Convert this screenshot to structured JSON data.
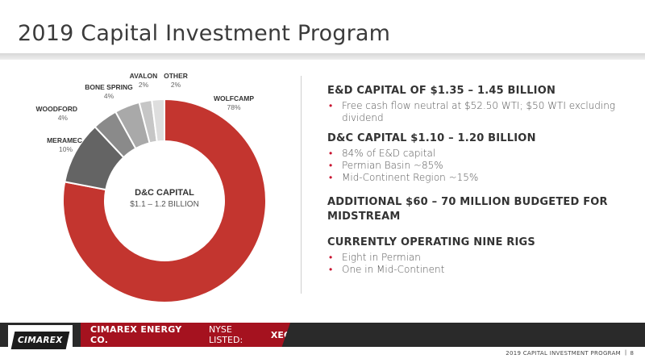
{
  "title": "2019 Capital Investment Program",
  "chart_data": {
    "type": "pie",
    "donut": true,
    "center_label": "D&C CAPITAL",
    "center_value": "$1.1 – 1.2 BILLION",
    "slices": [
      {
        "name": "WOLFCAMP",
        "value": 78,
        "label": "78%",
        "color": "#c3352f"
      },
      {
        "name": "MERAMEC",
        "value": 10,
        "label": "10%",
        "color": "#646464"
      },
      {
        "name": "WOODFORD",
        "value": 4,
        "label": "4%",
        "color": "#8a8a8a"
      },
      {
        "name": "BONE SPRING",
        "value": 4,
        "label": "4%",
        "color": "#a9a9a9"
      },
      {
        "name": "AVALON",
        "value": 2,
        "label": "2%",
        "color": "#c6c6c6"
      },
      {
        "name": "OTHER",
        "value": 2,
        "label": "2%",
        "color": "#dedede"
      }
    ]
  },
  "sections": [
    {
      "heading": "E&D CAPITAL OF $1.35 – 1.45 BILLION",
      "bullets": [
        "Free cash flow neutral at $52.50 WTI; $50 WTI excluding dividend"
      ]
    },
    {
      "heading": "D&C CAPITAL $1.10 – 1.20 BILLION",
      "bullets": [
        "84% of E&D capital",
        "Permian Basin ~85%",
        "Mid-Continent Region ~15%"
      ]
    },
    {
      "heading": "ADDITIONAL $60 – 70 MILLION BUDGETED FOR MIDSTREAM",
      "bullets": []
    },
    {
      "heading": "CURRENTLY OPERATING NINE RIGS",
      "bullets": [
        "Eight in Permian",
        "One in Mid-Continent"
      ]
    }
  ],
  "footer": {
    "logo": "CIMAREX",
    "company": "CIMAREX ENERGY CO.",
    "listing": "NYSE LISTED:",
    "ticker": "XEC",
    "caption": "2019 CAPITAL INVESTMENT PROGRAM",
    "separator": "|",
    "page": "8"
  },
  "colors": {
    "accent": "#a5121f",
    "footer_dark": "#2a2a2a",
    "bullet": "#c8102e"
  }
}
